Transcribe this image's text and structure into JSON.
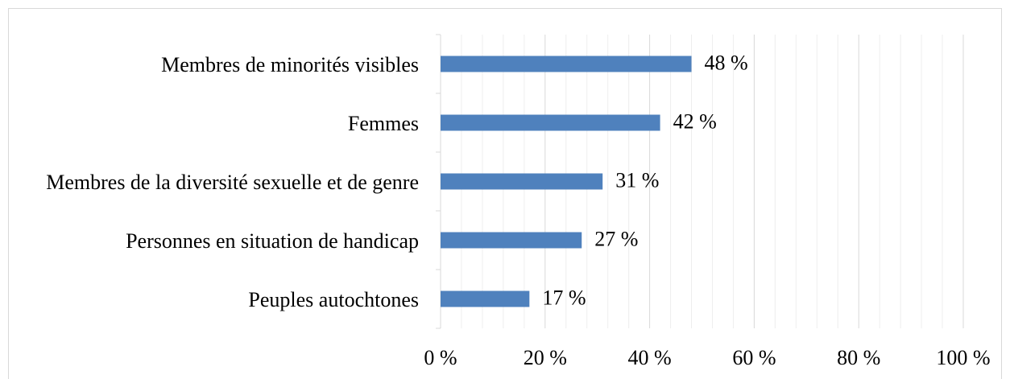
{
  "chart_data": {
    "type": "bar",
    "orientation": "horizontal",
    "categories": [
      "Membres de minorités visibles",
      "Femmes",
      "Membres de la diversité sexuelle et de genre",
      "Personnes en situation de handicap",
      "Peuples autochtones"
    ],
    "values": [
      48,
      42,
      31,
      27,
      17
    ],
    "value_labels": [
      "48 %",
      "42 %",
      "31 %",
      "27 %",
      "17 %"
    ],
    "color": "#4f81bd",
    "xlim": [
      0,
      100
    ],
    "xticks": [
      {
        "value": 0,
        "label": "0 %"
      },
      {
        "value": 20,
        "label": "20 %"
      },
      {
        "value": 40,
        "label": "40 %"
      },
      {
        "value": 60,
        "label": "60 %"
      },
      {
        "value": 80,
        "label": "80 %"
      },
      {
        "value": 100,
        "label": "100 %"
      }
    ],
    "xminorticks": [
      4,
      8,
      12,
      16,
      24,
      28,
      32,
      36,
      44,
      48,
      52,
      56,
      64,
      68,
      72,
      76,
      84,
      88,
      92,
      96
    ],
    "grid": true
  }
}
